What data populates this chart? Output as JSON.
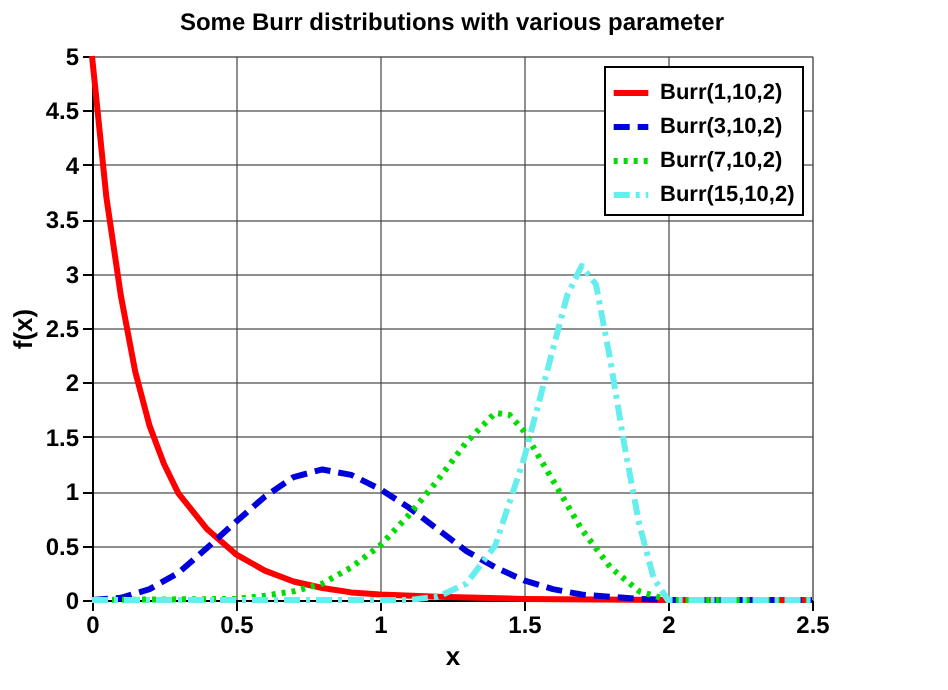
{
  "chart_data": {
    "type": "line",
    "title": "Some Burr distributions with various parameter",
    "xlabel": "x",
    "ylabel": "f(x)",
    "xlim": [
      0,
      2.5
    ],
    "xticks": [
      0,
      0.5,
      1,
      1.5,
      2,
      2.5
    ],
    "ylim": [
      0,
      5
    ],
    "yticks": [
      0,
      0.5,
      1,
      1.5,
      2,
      2.5,
      3,
      3.5,
      4,
      4.5,
      5
    ],
    "grid": true,
    "legend": "top right",
    "marker": "none",
    "series": [
      {
        "name": "Burr(1,10,2)",
        "color": "#ff0000",
        "line_style": "solid",
        "x": [
          0,
          0.05,
          0.1,
          0.15,
          0.2,
          0.25,
          0.3,
          0.4,
          0.5,
          0.6,
          0.7,
          0.8,
          0.9,
          1.0,
          1.2,
          1.5,
          2.0,
          2.5
        ],
        "values": [
          5,
          3.7,
          2.8,
          2.1,
          1.6,
          1.25,
          0.98,
          0.65,
          0.42,
          0.27,
          0.17,
          0.11,
          0.07,
          0.05,
          0.03,
          0.01,
          0,
          0
        ]
      },
      {
        "name": "Burr(3,10,2)",
        "color": "#0000dd",
        "line_style": "dashed",
        "x": [
          0,
          0.1,
          0.2,
          0.3,
          0.4,
          0.5,
          0.6,
          0.7,
          0.8,
          0.9,
          1.0,
          1.1,
          1.2,
          1.3,
          1.4,
          1.5,
          1.6,
          1.7,
          1.8,
          1.9,
          2.0,
          2.5
        ],
        "values": [
          0,
          0.02,
          0.1,
          0.25,
          0.48,
          0.72,
          0.95,
          1.13,
          1.2,
          1.15,
          1.02,
          0.85,
          0.65,
          0.45,
          0.3,
          0.18,
          0.1,
          0.05,
          0.03,
          0.01,
          0,
          0
        ]
      },
      {
        "name": "Burr(7,10,2)",
        "color": "#00dd00",
        "line_style": "dotted",
        "x": [
          0,
          0.5,
          0.6,
          0.7,
          0.8,
          0.9,
          1.0,
          1.1,
          1.2,
          1.3,
          1.4,
          1.45,
          1.5,
          1.6,
          1.7,
          1.8,
          1.9,
          2.0,
          2.5
        ],
        "values": [
          0,
          0.01,
          0.04,
          0.08,
          0.15,
          0.3,
          0.5,
          0.78,
          1.1,
          1.45,
          1.72,
          1.7,
          1.55,
          1.1,
          0.65,
          0.3,
          0.08,
          0,
          0
        ]
      },
      {
        "name": "Burr(15,10,2)",
        "color": "#66eeee",
        "line_style": "dashdot",
        "x": [
          0,
          1.1,
          1.2,
          1.3,
          1.4,
          1.5,
          1.6,
          1.65,
          1.7,
          1.75,
          1.8,
          1.85,
          1.9,
          1.95,
          2.0,
          2.5
        ],
        "values": [
          0,
          0,
          0.03,
          0.15,
          0.5,
          1.3,
          2.3,
          2.8,
          3.07,
          2.9,
          2.2,
          1.4,
          0.7,
          0.2,
          0,
          0
        ]
      }
    ]
  }
}
